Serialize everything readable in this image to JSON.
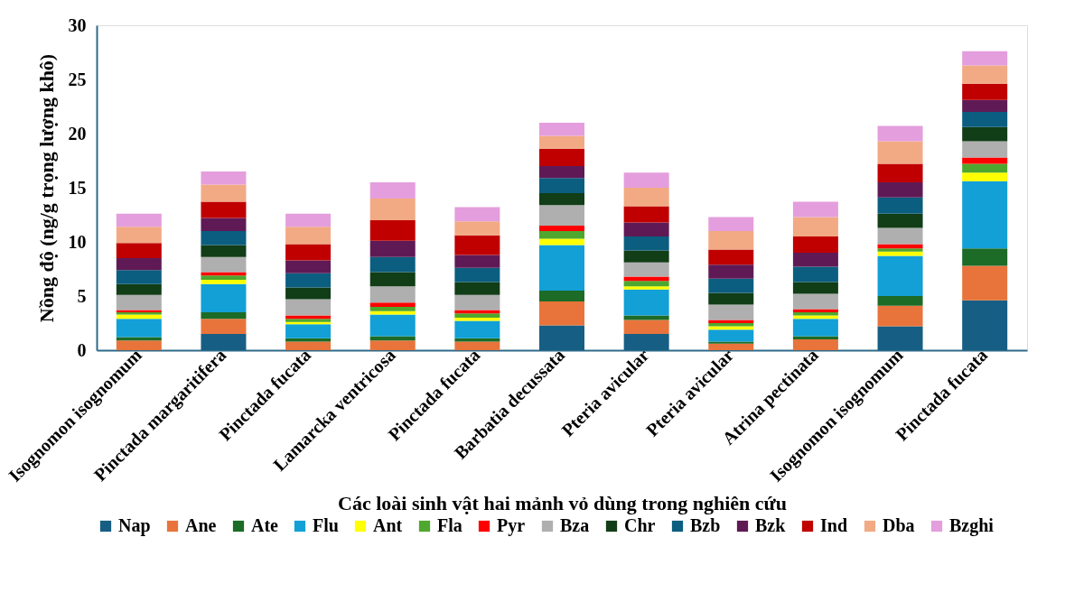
{
  "chart_data": {
    "type": "bar",
    "stacked": true,
    "xlabel": "Các loài sinh vật hai mảnh vỏ dùng trong nghiên cứu",
    "ylabel": "Nồng độ (ng/g trọng lượng khô)",
    "categories": [
      "Isognomon isognomum",
      "Pinctada margaritifera",
      "Pinctada fucata",
      "Lamarcka ventricosa",
      "Pinctada fucata",
      "Barbatia decussata",
      "Pteria avicular",
      "Pteria avicular",
      "Atrina pectinata",
      "Isognomon isognomum",
      "Pinctada fucata"
    ],
    "ylim": [
      0,
      30
    ],
    "yticks": [
      0,
      5,
      10,
      15,
      20,
      25,
      30
    ],
    "grid": false,
    "legend": "bottom",
    "series": [
      {
        "name": "Nap",
        "color": "#175e84",
        "values": [
          0,
          1.5,
          0,
          0,
          0,
          2.3,
          1.5,
          0,
          0,
          2.2,
          4.6
        ]
      },
      {
        "name": "Ane",
        "color": "#e8743b",
        "values": [
          0.9,
          1.4,
          0.8,
          0.9,
          0.8,
          2.2,
          1.3,
          0.6,
          1.0,
          1.9,
          3.2
        ]
      },
      {
        "name": "Ate",
        "color": "#1c6b26",
        "values": [
          0.3,
          0.6,
          0.3,
          0.4,
          0.3,
          1.0,
          0.4,
          0.2,
          0.3,
          0.9,
          1.6
        ]
      },
      {
        "name": "Flu",
        "color": "#12a0d7",
        "values": [
          1.7,
          2.6,
          1.3,
          2.0,
          1.6,
          4.2,
          2.4,
          1.1,
          1.6,
          3.7,
          6.2
        ]
      },
      {
        "name": "Ant",
        "color": "#ffff00",
        "values": [
          0.4,
          0.4,
          0.2,
          0.3,
          0.3,
          0.6,
          0.3,
          0.3,
          0.3,
          0.4,
          0.8
        ]
      },
      {
        "name": "Fla",
        "color": "#4ea72e",
        "values": [
          0.2,
          0.4,
          0.3,
          0.4,
          0.4,
          0.7,
          0.5,
          0.3,
          0.3,
          0.3,
          0.8
        ]
      },
      {
        "name": "Pyr",
        "color": "#ff0000",
        "values": [
          0.2,
          0.3,
          0.3,
          0.4,
          0.3,
          0.5,
          0.4,
          0.3,
          0.3,
          0.4,
          0.6
        ]
      },
      {
        "name": "Bza",
        "color": "#afafaf",
        "values": [
          1.4,
          1.4,
          1.5,
          1.5,
          1.4,
          1.9,
          1.3,
          1.4,
          1.4,
          1.5,
          1.5
        ]
      },
      {
        "name": "Chr",
        "color": "#113d17",
        "values": [
          1.0,
          1.1,
          1.1,
          1.3,
          1.2,
          1.1,
          1.1,
          1.1,
          1.1,
          1.3,
          1.3
        ]
      },
      {
        "name": "Bzb",
        "color": "#0b5e7f",
        "values": [
          1.3,
          1.3,
          1.3,
          1.4,
          1.3,
          1.4,
          1.3,
          1.3,
          1.4,
          1.5,
          1.4
        ]
      },
      {
        "name": "Bzk",
        "color": "#5f1a56",
        "values": [
          1.1,
          1.2,
          1.2,
          1.5,
          1.2,
          1.1,
          1.3,
          1.3,
          1.3,
          1.4,
          1.1
        ]
      },
      {
        "name": "Ind",
        "color": "#c00000",
        "values": [
          1.4,
          1.5,
          1.5,
          1.9,
          1.8,
          1.6,
          1.5,
          1.4,
          1.5,
          1.7,
          1.5
        ]
      },
      {
        "name": "Dba",
        "color": "#f2aa84",
        "values": [
          1.5,
          1.6,
          1.6,
          2.0,
          1.3,
          1.2,
          1.7,
          1.7,
          1.8,
          2.1,
          1.7
        ]
      },
      {
        "name": "Bzghi",
        "color": "#e49edd",
        "values": [
          1.2,
          1.2,
          1.2,
          1.5,
          1.3,
          1.2,
          1.4,
          1.3,
          1.4,
          1.4,
          1.3
        ]
      }
    ]
  }
}
